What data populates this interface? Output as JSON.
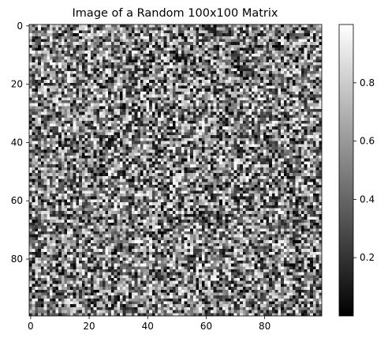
{
  "chart_data": {
    "type": "heatmap",
    "title": "Image of a Random 100x100 Matrix",
    "rows": 100,
    "cols": 100,
    "value_range": [
      0,
      1
    ],
    "colormap": "gray",
    "x_ticks": [
      0,
      20,
      40,
      60,
      80
    ],
    "y_ticks": [
      0,
      20,
      40,
      60,
      80
    ],
    "colorbar_ticks": [
      0.2,
      0.4,
      0.6,
      0.8
    ],
    "colorbar_tick_labels": [
      "0.2",
      "0.4",
      "0.6",
      "0.8"
    ],
    "values_note": "random uniform values"
  }
}
